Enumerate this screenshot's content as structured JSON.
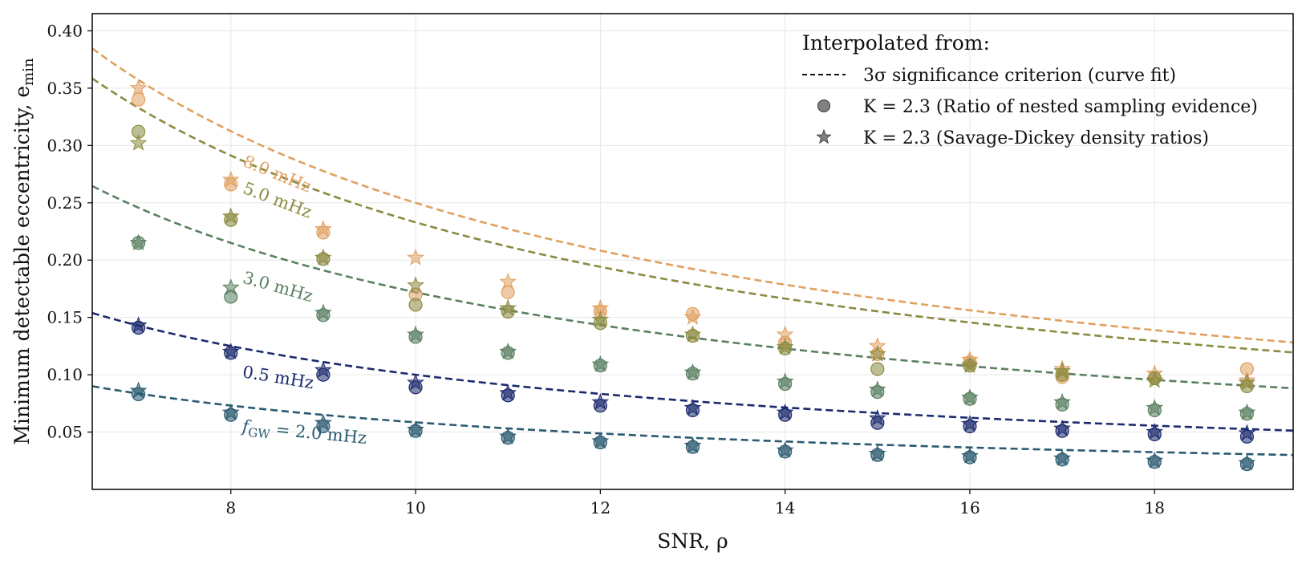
{
  "chart_data": {
    "type": "scatter",
    "title": "",
    "xlabel": "SNR, ρ",
    "ylabel": "Minimum detectable eccentricity, e",
    "ylabel_sub": "min",
    "xlim": [
      6.5,
      19.5
    ],
    "ylim": [
      0.0,
      0.415
    ],
    "xticks": [
      8,
      10,
      12,
      14,
      16,
      18
    ],
    "xtick_labels": [
      "8",
      "10",
      "12",
      "14",
      "16",
      "18"
    ],
    "yticks": [
      0.05,
      0.1,
      0.15,
      0.2,
      0.25,
      0.3,
      0.35,
      0.4
    ],
    "ytick_labels": [
      "0.05",
      "0.10",
      "0.15",
      "0.20",
      "0.25",
      "0.30",
      "0.35",
      "0.40"
    ],
    "grid": true,
    "legend": {
      "position": "top-right",
      "title": "Interpolated from:",
      "entries": [
        {
          "marker": "dashed-line",
          "label": "3σ significance criterion (curve fit)"
        },
        {
          "marker": "circle",
          "label": "K = 2.3 (Ratio of nested sampling evidence)"
        },
        {
          "marker": "star",
          "label": "K = 2.3 (Savage-Dickey density ratios)"
        }
      ]
    },
    "snr": [
      7,
      8,
      9,
      10,
      11,
      12,
      13,
      14,
      15,
      16,
      17,
      18,
      19
    ],
    "series": [
      {
        "name": "8.0 mHz",
        "label": "8.0 mHz",
        "color": "#e0a060",
        "curve_coeff": 2.5,
        "circles": [
          0.34,
          0.266,
          0.224,
          0.17,
          0.172,
          0.155,
          0.153,
          0.128,
          0.118,
          0.111,
          0.098,
          0.097,
          0.105
        ],
        "stars": [
          0.35,
          0.27,
          0.227,
          0.202,
          0.181,
          0.158,
          0.15,
          0.135,
          0.125,
          0.113,
          0.105,
          0.101,
          0.095
        ]
      },
      {
        "name": "5.0 mHz",
        "label": "5.0 mHz",
        "color": "#8a8a40",
        "curve_coeff": 2.33,
        "circles": [
          0.312,
          0.235,
          0.201,
          0.161,
          0.155,
          0.145,
          0.134,
          0.123,
          0.105,
          0.108,
          0.1,
          0.097,
          0.09
        ],
        "stars": [
          0.302,
          0.238,
          0.202,
          0.178,
          0.158,
          0.148,
          0.135,
          0.124,
          0.118,
          0.108,
          0.103,
          0.095,
          0.093
        ]
      },
      {
        "name": "3.0 mHz",
        "label": "3.0 mHz",
        "color": "#5a8060",
        "curve_coeff": 1.72,
        "circles": [
          0.215,
          0.168,
          0.152,
          0.133,
          0.119,
          0.108,
          0.101,
          0.092,
          0.085,
          0.079,
          0.074,
          0.069,
          0.066
        ],
        "stars": [
          0.215,
          0.176,
          0.154,
          0.135,
          0.12,
          0.109,
          0.102,
          0.094,
          0.087,
          0.08,
          0.076,
          0.071,
          0.067
        ]
      },
      {
        "name": "0.5 mHz",
        "label": "0.5 mHz",
        "color": "#1c2a6e",
        "curve_coeff": 1.0,
        "circles": [
          0.141,
          0.119,
          0.1,
          0.089,
          0.082,
          0.073,
          0.069,
          0.065,
          0.058,
          0.055,
          0.051,
          0.048,
          0.046
        ],
        "stars": [
          0.143,
          0.12,
          0.104,
          0.093,
          0.084,
          0.076,
          0.071,
          0.067,
          0.062,
          0.057,
          0.053,
          0.05,
          0.049
        ]
      },
      {
        "name": "fGW = 2.0 mHz",
        "label": "f",
        "label_sub": "GW",
        "label_rest": " = 2.0 mHz",
        "color": "#2a5a70",
        "curve_coeff": 0.585,
        "circles": [
          0.083,
          0.065,
          0.055,
          0.051,
          0.045,
          0.041,
          0.037,
          0.033,
          0.03,
          0.028,
          0.026,
          0.024,
          0.022
        ],
        "stars": [
          0.086,
          0.067,
          0.058,
          0.052,
          0.046,
          0.042,
          0.038,
          0.034,
          0.031,
          0.029,
          0.027,
          0.025,
          0.023
        ]
      }
    ]
  }
}
